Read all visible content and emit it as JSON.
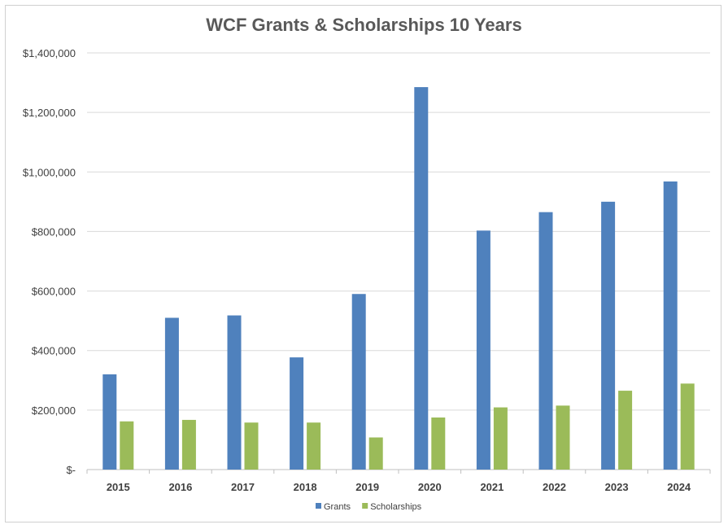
{
  "chart_data": {
    "type": "bar",
    "title": "WCF Grants & Scholarships 10 Years",
    "xlabel": "",
    "ylabel": "",
    "categories": [
      "2015",
      "2016",
      "2017",
      "2018",
      "2019",
      "2020",
      "2021",
      "2022",
      "2023",
      "2024"
    ],
    "series": [
      {
        "name": "Grants",
        "color": "#4F81BD",
        "values": [
          320000,
          510000,
          518000,
          377000,
          590000,
          1285000,
          803000,
          865000,
          900000,
          968000
        ]
      },
      {
        "name": "Scholarships",
        "color": "#9BBB59",
        "values": [
          162000,
          167000,
          158000,
          158000,
          108000,
          175000,
          209000,
          215000,
          265000,
          289000
        ]
      }
    ],
    "ylim": [
      0,
      1400000
    ],
    "yticks": [
      0,
      200000,
      400000,
      600000,
      800000,
      1000000,
      1200000,
      1400000
    ],
    "ytick_labels": [
      "$-",
      "$200,000",
      "$400,000",
      "$600,000",
      "$800,000",
      "$1,000,000",
      "$1,200,000",
      "$1,400,000"
    ],
    "grid": true,
    "legend": "bottom",
    "grid_color": "#d9d9d9",
    "axis_color": "#bfbfbf"
  }
}
